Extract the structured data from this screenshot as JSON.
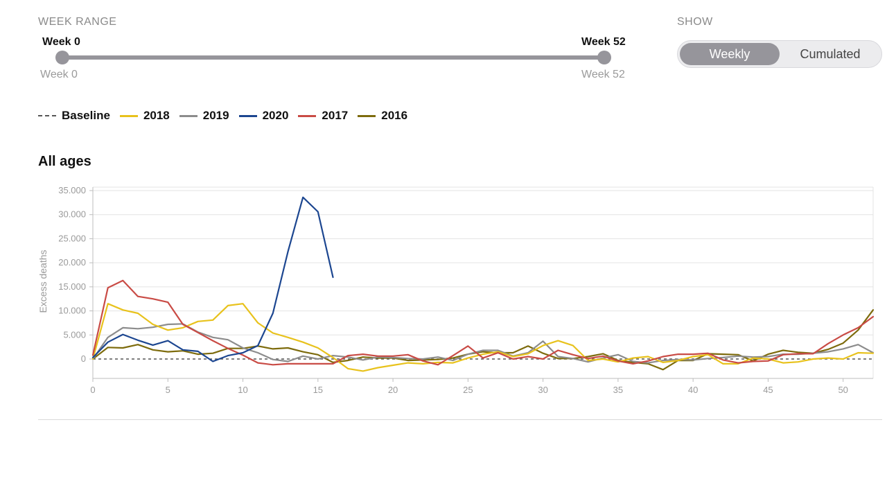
{
  "controls": {
    "week_range_label": "WEEK RANGE",
    "range_start_label": "Week 0",
    "range_end_label": "Week 52",
    "range_start_sub": "Week 0",
    "range_end_sub": "Week 52",
    "range_start_value": 0,
    "range_end_value": 52,
    "show_label": "SHOW",
    "toggle_options": [
      "Weekly",
      "Cumulated"
    ],
    "toggle_selected": "Weekly"
  },
  "legend": [
    {
      "label": "Baseline",
      "color": "#555555",
      "dashed": true
    },
    {
      "label": "2018",
      "color": "#e8c21c"
    },
    {
      "label": "2019",
      "color": "#8c8c8c"
    },
    {
      "label": "2020",
      "color": "#1c4690"
    },
    {
      "label": "2017",
      "color": "#c94b45"
    },
    {
      "label": "2016",
      "color": "#7d6b0c"
    }
  ],
  "chart_title": "All ages",
  "chart_data": {
    "type": "line",
    "title": "All ages",
    "xlabel": "",
    "ylabel": "Excess deaths",
    "xlim": [
      0,
      52
    ],
    "ylim": [
      -4000,
      35000
    ],
    "x_ticks": [
      0,
      5,
      10,
      15,
      20,
      25,
      30,
      35,
      40,
      45,
      50
    ],
    "x_tick_labels": [
      "0",
      "5",
      "10",
      "15",
      "20",
      "25",
      "30",
      "35",
      "40",
      "45",
      "50"
    ],
    "y_ticks": [
      0,
      5000,
      10000,
      15000,
      20000,
      25000,
      30000,
      35000
    ],
    "y_tick_labels": [
      "0",
      "5.000",
      "10.000",
      "15.000",
      "20.000",
      "25.000",
      "30.000",
      "35.000"
    ],
    "grid": true,
    "baseline": 0,
    "series": [
      {
        "name": "2018",
        "color": "#e8c21c",
        "x": [
          0,
          1,
          2,
          3,
          4,
          5,
          6,
          7,
          8,
          9,
          10,
          11,
          12,
          13,
          14,
          15,
          16,
          17,
          18,
          19,
          20,
          21,
          22,
          23,
          24,
          25,
          26,
          27,
          28,
          29,
          30,
          31,
          32,
          33,
          34,
          35,
          36,
          37,
          38,
          39,
          40,
          41,
          42,
          43,
          44,
          45,
          46,
          47,
          48,
          49,
          50,
          51,
          52
        ],
        "values": [
          0,
          11500,
          10200,
          9500,
          7200,
          6000,
          6500,
          7800,
          8100,
          11100,
          11500,
          7500,
          5400,
          4500,
          3500,
          2300,
          300,
          -2000,
          -2500,
          -1800,
          -1300,
          -800,
          -1000,
          -700,
          -800,
          200,
          1000,
          1500,
          500,
          1100,
          2800,
          3800,
          2800,
          -300,
          0,
          -600,
          200,
          500,
          -700,
          -300,
          500,
          900,
          -1000,
          -1000,
          200,
          0,
          -800,
          -600,
          0,
          200,
          0,
          1300,
          1200
        ]
      },
      {
        "name": "2019",
        "color": "#8c8c8c",
        "x": [
          0,
          1,
          2,
          3,
          4,
          5,
          6,
          7,
          8,
          9,
          10,
          11,
          12,
          13,
          14,
          15,
          16,
          17,
          18,
          19,
          20,
          21,
          22,
          23,
          24,
          25,
          26,
          27,
          28,
          29,
          30,
          31,
          32,
          33,
          34,
          35,
          36,
          37,
          38,
          39,
          40,
          41,
          42,
          43,
          44,
          45,
          46,
          47,
          48,
          49,
          50,
          51,
          52
        ],
        "values": [
          0,
          4500,
          6500,
          6300,
          6600,
          7200,
          7300,
          5600,
          4500,
          4000,
          2300,
          1300,
          -100,
          -500,
          600,
          0,
          700,
          400,
          -200,
          400,
          300,
          100,
          0,
          400,
          -300,
          1000,
          1800,
          1800,
          600,
          1300,
          3700,
          500,
          100,
          -600,
          200,
          900,
          -500,
          -800,
          -300,
          -100,
          -200,
          100,
          300,
          600,
          400,
          500,
          1000,
          1000,
          1200,
          1500,
          2100,
          3000,
          1300
        ]
      },
      {
        "name": "2020",
        "color": "#1c4690",
        "x": [
          0,
          1,
          2,
          3,
          4,
          5,
          6,
          7,
          8,
          9,
          10,
          11,
          12,
          13,
          14,
          15,
          16
        ],
        "values": [
          300,
          3500,
          5100,
          3900,
          2900,
          3800,
          1900,
          1600,
          -500,
          700,
          1300,
          2800,
          9500,
          22300,
          33600,
          30600,
          17000
        ]
      },
      {
        "name": "2017",
        "color": "#c94b45",
        "x": [
          0,
          1,
          2,
          3,
          4,
          5,
          6,
          7,
          8,
          9,
          10,
          11,
          12,
          13,
          14,
          15,
          16,
          17,
          18,
          19,
          20,
          21,
          22,
          23,
          24,
          25,
          26,
          27,
          28,
          29,
          30,
          31,
          32,
          33,
          34,
          35,
          36,
          37,
          38,
          39,
          40,
          41,
          42,
          43,
          44,
          45,
          46,
          47,
          48,
          49,
          50,
          51,
          52
        ],
        "values": [
          800,
          14800,
          16300,
          13000,
          12500,
          11800,
          7200,
          5500,
          3800,
          2200,
          800,
          -800,
          -1200,
          -1000,
          -1000,
          -1000,
          -1000,
          700,
          1000,
          600,
          600,
          900,
          -400,
          -1200,
          700,
          2700,
          200,
          1300,
          0,
          500,
          0,
          1800,
          900,
          100,
          600,
          -400,
          -1000,
          -400,
          500,
          1000,
          1000,
          1200,
          -200,
          -800,
          -500,
          -400,
          900,
          1100,
          1100,
          3200,
          5000,
          6500,
          8800
        ]
      },
      {
        "name": "2016",
        "color": "#7d6b0c",
        "x": [
          0,
          1,
          2,
          3,
          4,
          5,
          6,
          7,
          8,
          9,
          10,
          11,
          12,
          13,
          14,
          15,
          16,
          17,
          18,
          19,
          20,
          21,
          22,
          23,
          24,
          25,
          26,
          27,
          28,
          29,
          30,
          31,
          32,
          33,
          34,
          35,
          36,
          37,
          38,
          39,
          40,
          41,
          42,
          43,
          44,
          45,
          46,
          47,
          48,
          49,
          50,
          51,
          52
        ],
        "values": [
          0,
          2400,
          2300,
          3000,
          1900,
          1500,
          1700,
          1000,
          1200,
          2200,
          2200,
          2700,
          2100,
          2300,
          1500,
          900,
          -700,
          -300,
          400,
          200,
          200,
          -300,
          -200,
          -100,
          200,
          1000,
          1500,
          1300,
          1300,
          2700,
          1200,
          100,
          100,
          500,
          1100,
          -300,
          -700,
          -1000,
          -2200,
          -300,
          -300,
          1100,
          1000,
          900,
          -400,
          1000,
          1800,
          1400,
          1200,
          2000,
          3300,
          6000,
          10200
        ]
      }
    ]
  }
}
